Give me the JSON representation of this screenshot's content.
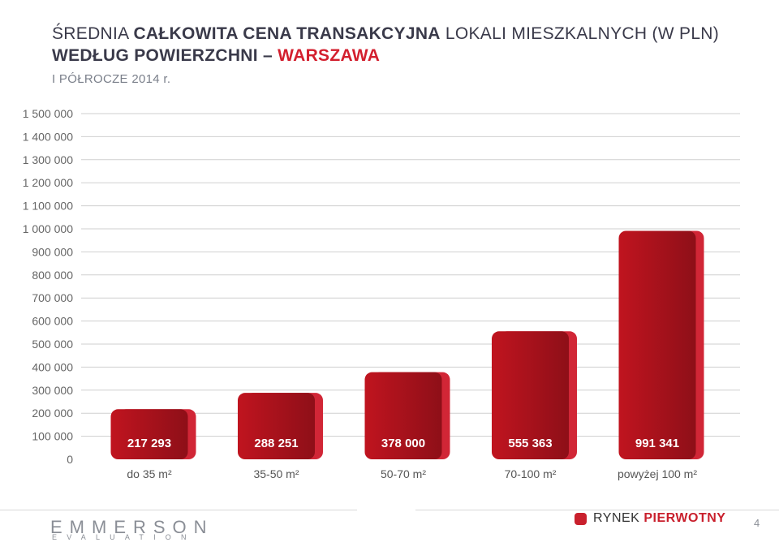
{
  "header": {
    "title_part1": "ŚREDNIA",
    "title_part2": "CAŁKOWITA CENA TRANSAKCYJNA",
    "title_part3": "LOKALI MIESZKALNYCH (W PLN)",
    "title_part4": "WEDŁUG POWIERZCHNI –",
    "title_part5": "WARSZAWA",
    "subtitle": "I PÓŁROCZE 2014 r."
  },
  "chart_data": {
    "type": "bar",
    "categories": [
      "do 35 m²",
      "35-50 m²",
      "50-70 m²",
      "70-100 m²",
      "powyżej 100 m²"
    ],
    "values": [
      217293,
      288251,
      378000,
      555363,
      991341
    ],
    "value_labels": [
      "217 293",
      "288 251",
      "378 000",
      "555 363",
      "991 341"
    ],
    "ylim": [
      0,
      1500000
    ],
    "yticks": [
      0,
      100000,
      200000,
      300000,
      400000,
      500000,
      600000,
      700000,
      800000,
      900000,
      1000000,
      1100000,
      1200000,
      1300000,
      1400000,
      1500000
    ],
    "ytick_labels": [
      "0",
      "100 000",
      "200 000",
      "300 000",
      "400 000",
      "500 000",
      "600 000",
      "700 000",
      "800 000",
      "900 000",
      "1 000 000",
      "1 100 000",
      "1 200 000",
      "1 300 000",
      "1 400 000",
      "1 500 000"
    ],
    "grid": true,
    "bar_color": "#a5121c",
    "bar_shadow_color": "#d12636"
  },
  "footer": {
    "logo_main": "EMMERSON",
    "logo_sub": "EVALUATION",
    "brand_plain": "RYNEK",
    "brand_accent": "PIERWOTNY",
    "page_number": "4"
  }
}
